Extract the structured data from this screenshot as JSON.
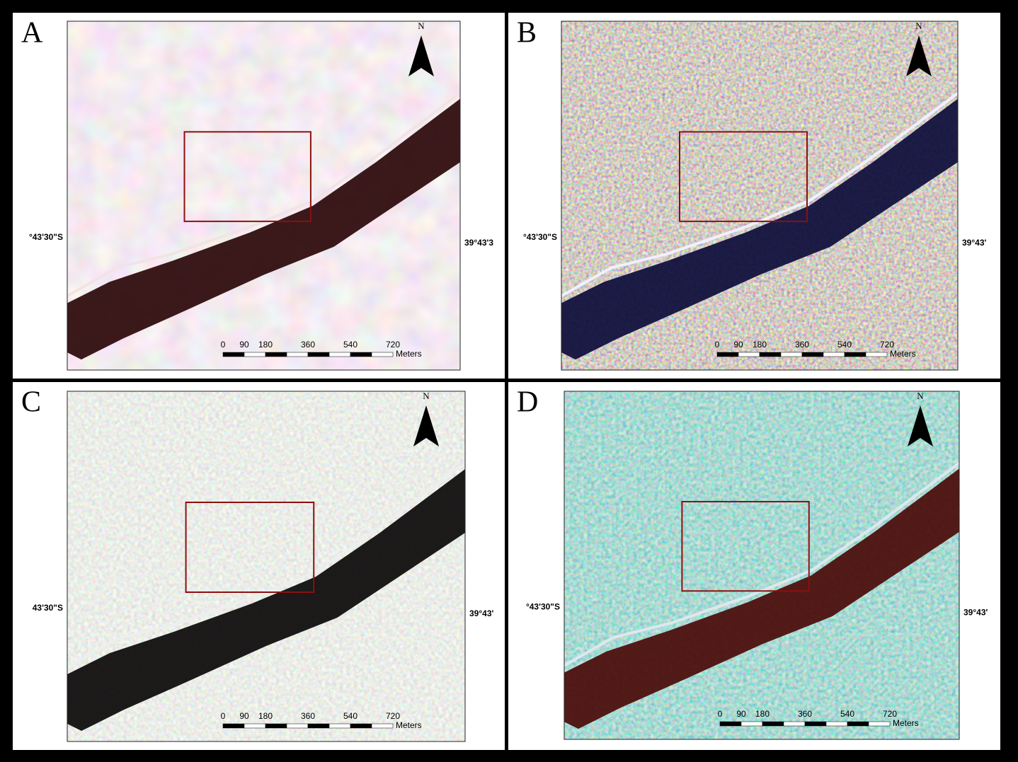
{
  "panels": [
    {
      "label": "A",
      "lat_label": "°43'30\"S",
      "lon_label": "39°43'3",
      "north": "N",
      "scale_ticks": [
        "0",
        "90",
        "180",
        "360",
        "540",
        "720"
      ],
      "scale_unit": "Meters"
    },
    {
      "label": "B",
      "lat_label": "°43'30\"S",
      "lon_label": "39°43'",
      "north": "N",
      "scale_ticks": [
        "0",
        "90",
        "180",
        "360",
        "540",
        "720"
      ],
      "scale_unit": "Meters"
    },
    {
      "label": "C",
      "lat_label": "43'30\"S",
      "lon_label": "39°43'",
      "north": "N",
      "scale_ticks": [
        "0",
        "90",
        "180",
        "360",
        "540",
        "720"
      ],
      "scale_unit": "Meters"
    },
    {
      "label": "D",
      "lat_label": "°43'30\"S",
      "lon_label": "39°43'",
      "north": "N",
      "scale_ticks": [
        "0",
        "90",
        "180",
        "360",
        "540",
        "720"
      ],
      "scale_unit": "Meters"
    }
  ]
}
